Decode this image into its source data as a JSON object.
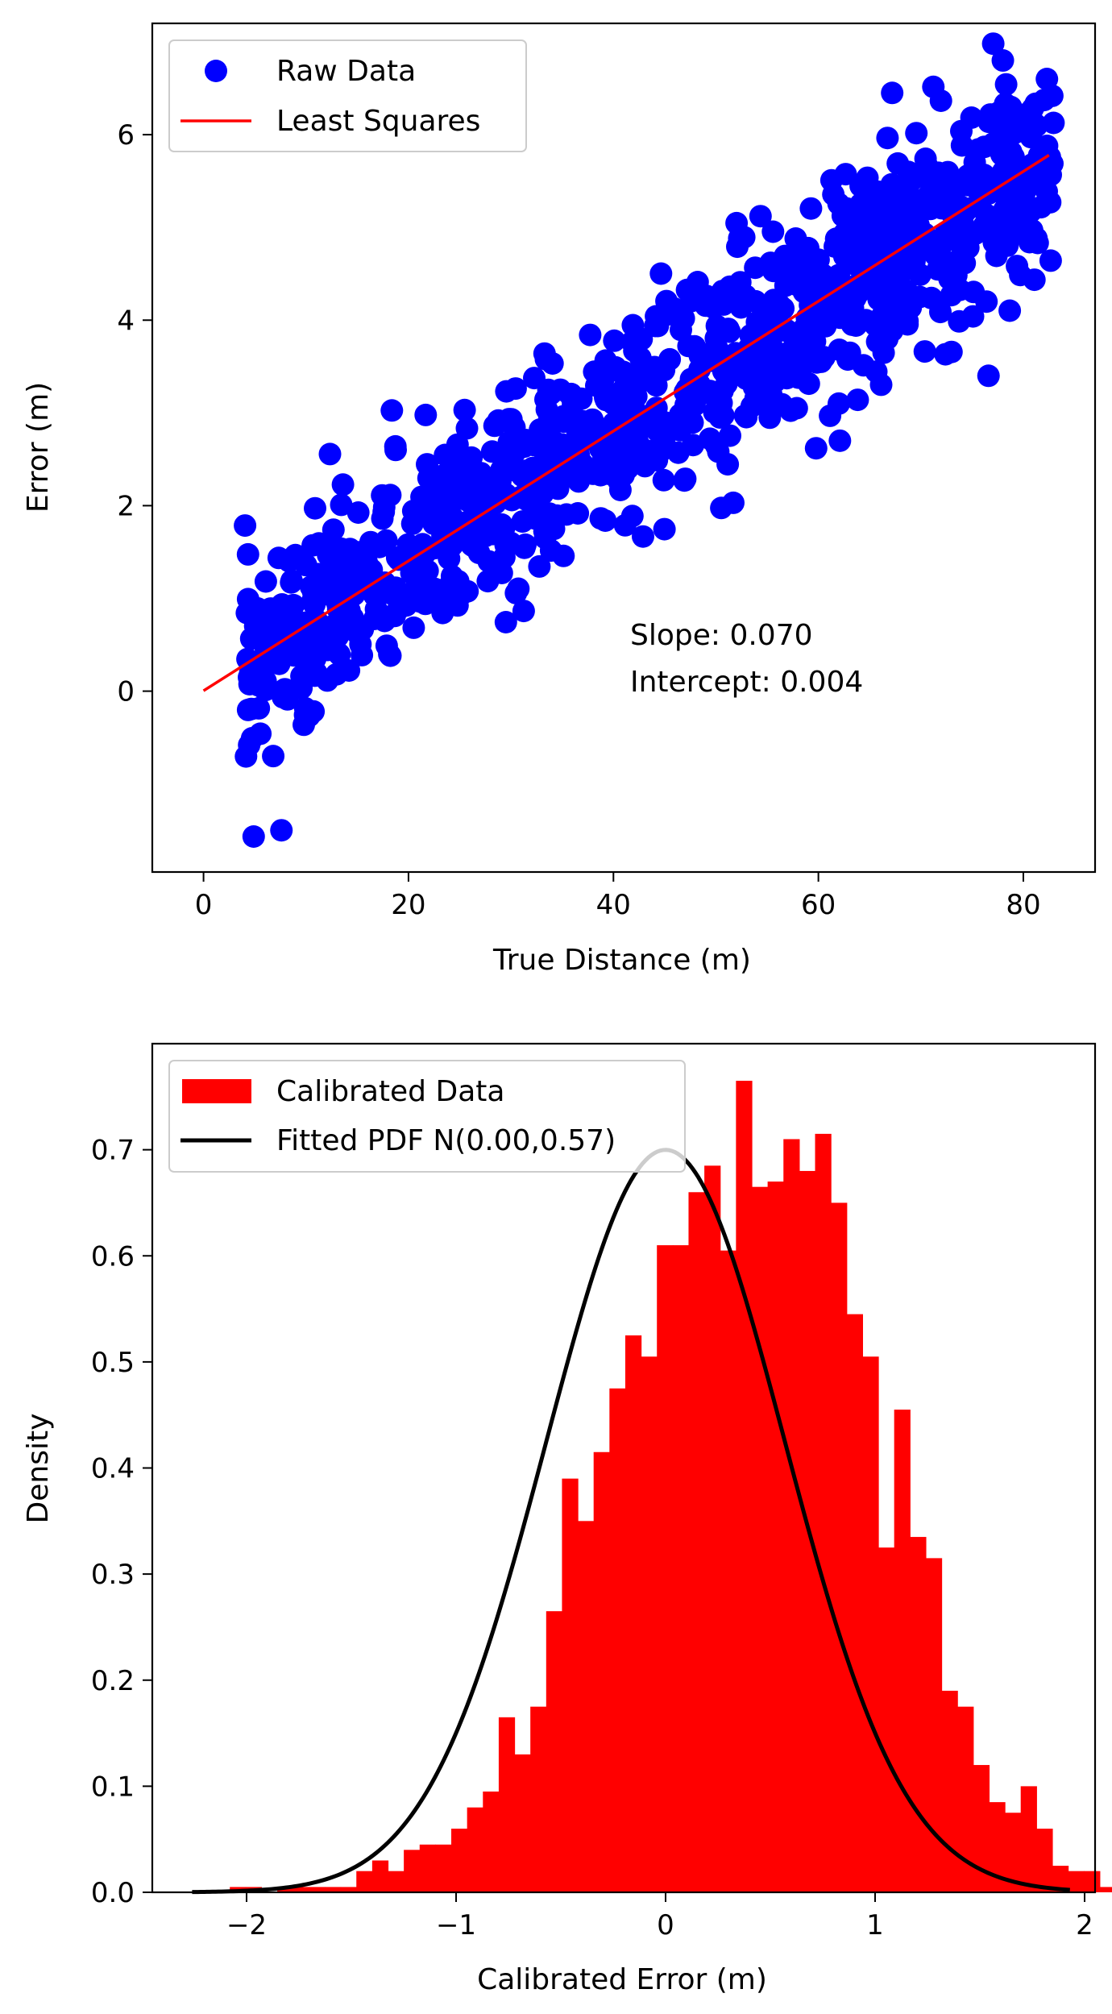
{
  "chart_data": [
    {
      "type": "scatter",
      "xlabel": "True Distance (m)",
      "ylabel": "Error (m)",
      "xlim": [
        -5,
        87
      ],
      "ylim": [
        -1.95,
        7.2
      ],
      "xticks": [
        0,
        20,
        40,
        60,
        80
      ],
      "yticks": [
        0,
        2,
        4,
        6
      ],
      "xtick_labels": [
        "0",
        "20",
        "40",
        "60",
        "80"
      ],
      "ytick_labels": [
        "0",
        "2",
        "4",
        "6"
      ],
      "legend_position": "upper-left",
      "grid": false,
      "series": [
        {
          "name": "Raw Data",
          "kind": "scatter",
          "color": "#0000ff",
          "x_range": [
            4,
            83
          ],
          "slope": 0.07,
          "intercept": 0.004,
          "spread": 0.55,
          "count": 1000,
          "highlighted_points": [
            {
              "x": 7.6,
              "y": -1.5
            },
            {
              "x": 82.3,
              "y": 6.6
            },
            {
              "x": 78.0,
              "y": 6.8
            },
            {
              "x": 67.2,
              "y": 6.45
            },
            {
              "x": 76.6,
              "y": 3.4
            },
            {
              "x": 62.1,
              "y": 2.7
            },
            {
              "x": 6.8,
              "y": -0.7
            }
          ]
        },
        {
          "name": "Least Squares",
          "kind": "line",
          "color": "#ff0000",
          "x": [
            0,
            82.5
          ],
          "y": [
            0.004,
            5.779
          ]
        }
      ],
      "annotations": [
        "Slope: 0.070",
        "Intercept: 0.004"
      ]
    },
    {
      "type": "bar",
      "xlabel": "Calibrated Error (m)",
      "ylabel": "Density",
      "xlim": [
        -2.45,
        2.05
      ],
      "ylim": [
        0,
        0.8
      ],
      "xticks": [
        -2,
        -1,
        0,
        1,
        2
      ],
      "yticks": [
        0.0,
        0.1,
        0.2,
        0.3,
        0.4,
        0.5,
        0.6,
        0.7
      ],
      "xtick_labels": [
        "−2",
        "−1",
        "0",
        "1",
        "2"
      ],
      "ytick_labels": [
        "0.0",
        "0.1",
        "0.2",
        "0.3",
        "0.4",
        "0.5",
        "0.6",
        "0.7"
      ],
      "legend_position": "upper-left",
      "grid": false,
      "series": [
        {
          "name": "Calibrated Data",
          "kind": "histogram",
          "color": "#ff0000",
          "bin_start": -2.08,
          "bin_width": 0.0755,
          "densities": [
            0.005,
            0.005,
            0.0,
            0.005,
            0.005,
            0.005,
            0.005,
            0.005,
            0.02,
            0.03,
            0.02,
            0.04,
            0.045,
            0.045,
            0.06,
            0.08,
            0.095,
            0.165,
            0.13,
            0.175,
            0.265,
            0.39,
            0.35,
            0.415,
            0.475,
            0.525,
            0.505,
            0.61,
            0.61,
            0.66,
            0.685,
            0.605,
            0.765,
            0.665,
            0.67,
            0.71,
            0.68,
            0.715,
            0.65,
            0.545,
            0.505,
            0.325,
            0.455,
            0.335,
            0.315,
            0.19,
            0.175,
            0.12,
            0.085,
            0.075,
            0.1,
            0.06,
            0.025,
            0.02,
            0.02,
            0.005,
            0.025,
            0.0,
            0.02,
            0.005
          ]
        },
        {
          "name": "Fitted PDF N(0.00,0.57)",
          "kind": "line",
          "color": "#000000",
          "mu": 0.0,
          "sigma": 0.57,
          "x_range": [
            -2.26,
            1.93
          ]
        }
      ]
    }
  ]
}
